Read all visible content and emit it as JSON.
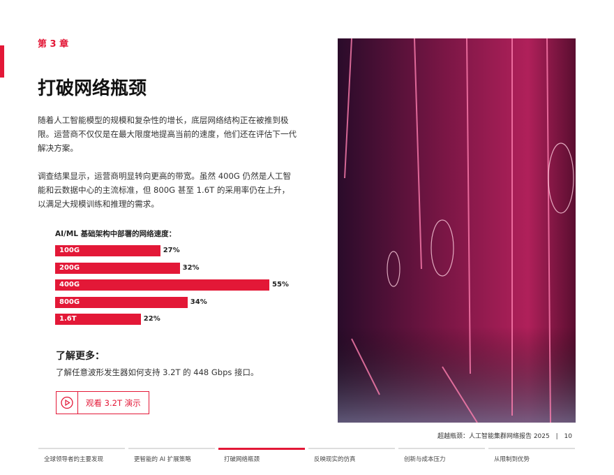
{
  "chapter": "第 3 章",
  "title": "打破网络瓶颈",
  "paragraphs": [
    "随着人工智能模型的规模和复杂性的增长，底层网络结构正在被推到极限。运营商不仅仅是在最大限度地提高当前的速度，他们还在评估下一代解决方案。",
    "调查结果显示，运营商明显转向更高的带宽。虽然 400G 仍然是人工智能和云数据中心的主流标准，但 800G 甚至 1.6T 的采用率仍在上升，以满足大规模训练和推理的需求。"
  ],
  "chart_data": {
    "type": "bar",
    "orientation": "horizontal",
    "title": "AI/ML 基础架构中部署的网络速度：",
    "categories": [
      "100G",
      "200G",
      "400G",
      "800G",
      "1.6T"
    ],
    "values": [
      27,
      32,
      55,
      34,
      22
    ],
    "value_labels": [
      "27%",
      "32%",
      "55%",
      "34%",
      "22%"
    ],
    "color": "#e31837"
  },
  "learn_more": {
    "heading": "了解更多：",
    "text": "了解任意波形发生器如何支持 3.2T 的 448 Gbps 接口。",
    "button": "观看 3.2T 演示"
  },
  "footer": {
    "report": "超越瓶颈：人工智能集群网络报告 2025",
    "separator": "|",
    "page": "10"
  },
  "nav": {
    "items": [
      "全球领导者的主要发现",
      "更智能的 AI 扩展策略",
      "打破网络瓶颈",
      "反映现实的仿真",
      "创新与成本压力",
      "从限制到优势"
    ],
    "active": 2
  }
}
